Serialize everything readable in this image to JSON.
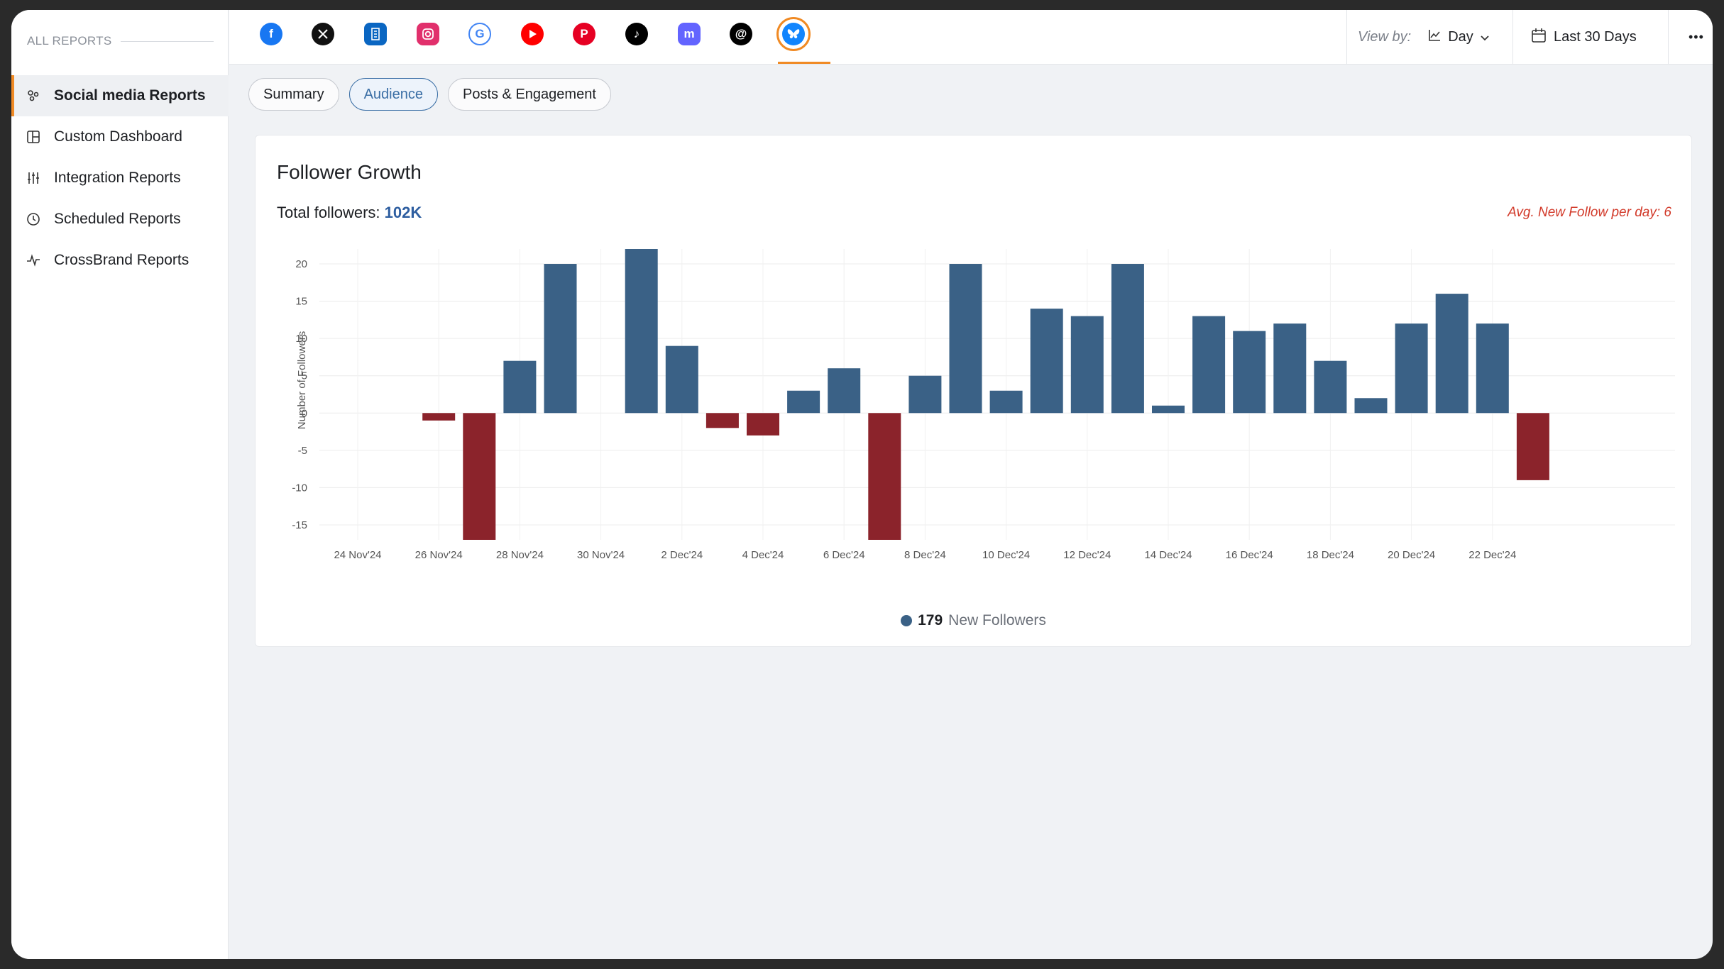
{
  "sidebar": {
    "header": "ALL REPORTS",
    "items": [
      {
        "label": "Social media Reports",
        "icon": "social-reports-icon",
        "active": true
      },
      {
        "label": "Custom Dashboard",
        "icon": "dashboard-icon",
        "active": false
      },
      {
        "label": "Integration Reports",
        "icon": "sliders-icon",
        "active": false
      },
      {
        "label": "Scheduled Reports",
        "icon": "clock-icon",
        "active": false
      },
      {
        "label": "CrossBrand Reports",
        "icon": "pulse-icon",
        "active": false
      }
    ]
  },
  "networks": [
    {
      "name": "facebook",
      "color": "#1877f2",
      "glyph": "f"
    },
    {
      "name": "x",
      "color": "#111111",
      "glyph": "𝕏"
    },
    {
      "name": "linkedin-pages",
      "color": "#0a66c2",
      "glyph": "▦"
    },
    {
      "name": "instagram",
      "color": "#e1306c",
      "glyph": "◎"
    },
    {
      "name": "google",
      "color": "#4285f4",
      "glyph": "G"
    },
    {
      "name": "youtube",
      "color": "#ff0000",
      "glyph": "▶"
    },
    {
      "name": "pinterest",
      "color": "#e60023",
      "glyph": "P"
    },
    {
      "name": "tiktok",
      "color": "#000000",
      "glyph": "♪"
    },
    {
      "name": "mastodon",
      "color": "#6364ff",
      "glyph": "m"
    },
    {
      "name": "threads",
      "color": "#000000",
      "glyph": "@"
    },
    {
      "name": "bluesky",
      "color": "#1185fe",
      "glyph": "🦋",
      "active": true
    }
  ],
  "toolbar": {
    "view_by_label": "View by:",
    "view_by_value": "Day",
    "date_range": "Last 30 Days",
    "more": "•••"
  },
  "tabs": [
    {
      "label": "Summary",
      "active": false
    },
    {
      "label": "Audience",
      "active": true
    },
    {
      "label": "Posts & Engagement",
      "active": false
    }
  ],
  "card": {
    "title": "Follower Growth",
    "total_label": "Total followers: ",
    "total_value": "102K",
    "avg_text": "Avg. New Follow per day: 6"
  },
  "colors": {
    "positive": "#3a6186",
    "negative": "#8b232b",
    "accent": "#f08a24"
  },
  "chart_data": {
    "type": "bar",
    "ylabel": "Number of Followers",
    "xlabel": "",
    "ylim": [
      -17,
      22
    ],
    "yticks": [
      20,
      15,
      10,
      5,
      0,
      -5,
      -10,
      -15
    ],
    "xtick_labels": [
      "24 Nov'24",
      "26 Nov'24",
      "28 Nov'24",
      "30 Nov'24",
      "2 Dec'24",
      "4 Dec'24",
      "6 Dec'24",
      "8 Dec'24",
      "10 Dec'24",
      "12 Dec'24",
      "14 Dec'24",
      "16 Dec'24",
      "18 Dec'24",
      "20 Dec'24",
      "22 Dec'24"
    ],
    "categories": [
      "24 Nov'24",
      "25 Nov'24",
      "26 Nov'24",
      "27 Nov'24",
      "28 Nov'24",
      "29 Nov'24",
      "30 Nov'24",
      "1 Dec'24",
      "2 Dec'24",
      "3 Dec'24",
      "4 Dec'24",
      "5 Dec'24",
      "6 Dec'24",
      "7 Dec'24",
      "8 Dec'24",
      "9 Dec'24",
      "10 Dec'24",
      "11 Dec'24",
      "12 Dec'24",
      "13 Dec'24",
      "14 Dec'24",
      "15 Dec'24",
      "16 Dec'24",
      "17 Dec'24",
      "18 Dec'24",
      "19 Dec'24",
      "20 Dec'24",
      "21 Dec'24",
      "22 Dec'24",
      "23 Dec'24"
    ],
    "values": [
      0,
      0,
      -1,
      -17,
      7,
      20,
      0,
      22,
      9,
      -2,
      -3,
      3,
      6,
      -17,
      5,
      20,
      3,
      14,
      13,
      20,
      1,
      13,
      11,
      12,
      7,
      2,
      12,
      16,
      12,
      -9
    ],
    "legend": {
      "count": "179",
      "label": "New Followers"
    }
  }
}
